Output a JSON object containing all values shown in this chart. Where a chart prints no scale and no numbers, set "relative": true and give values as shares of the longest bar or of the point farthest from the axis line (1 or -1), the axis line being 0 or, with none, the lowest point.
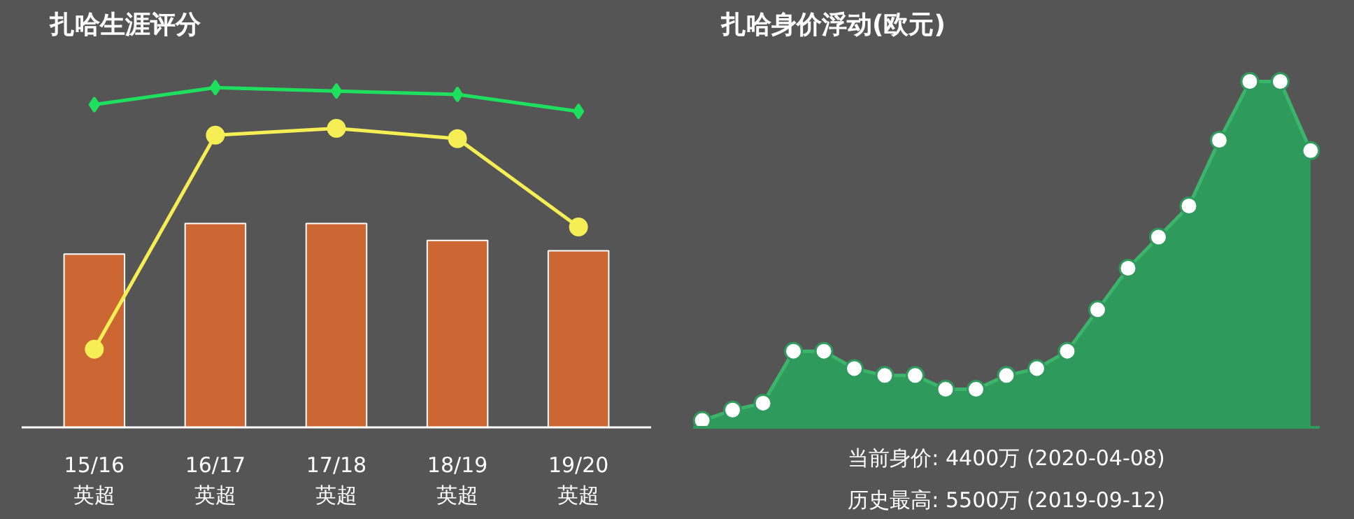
{
  "chart_data": [
    {
      "type": "bar",
      "title": "扎哈生涯评分",
      "relative": true,
      "categories": [
        "15/16\n英超",
        "16/17\n英超",
        "17/18\n英超",
        "18/19\n英超",
        "19/20\n英超"
      ],
      "series": [
        {
          "type": "bar",
          "color": "#cc6633",
          "values": [
            0.51,
            0.6,
            0.6,
            0.55,
            0.52
          ]
        },
        {
          "type": "line",
          "color": "#f5ef55",
          "marker": "circle",
          "values": [
            0.23,
            0.86,
            0.88,
            0.85,
            0.59
          ]
        },
        {
          "type": "line",
          "color": "#1ee05e",
          "marker": "diamond",
          "values": [
            0.95,
            1.0,
            0.99,
            0.98,
            0.93
          ]
        }
      ],
      "grid": false
    },
    {
      "type": "area",
      "title": "扎哈身价浮动(欧元)",
      "relative": true,
      "tick_labels": false,
      "marker": "circle",
      "categories": [
        null,
        null,
        null,
        null,
        null,
        null,
        null,
        null,
        null,
        null,
        null,
        null,
        null,
        null,
        null,
        null,
        null,
        null,
        null,
        null,
        null
      ],
      "series": [
        {
          "color": "#2e9a5c",
          "values": [
            0.02,
            0.05,
            0.07,
            0.22,
            0.22,
            0.17,
            0.15,
            0.15,
            0.11,
            0.11,
            0.15,
            0.17,
            0.22,
            0.34,
            0.46,
            0.55,
            0.64,
            0.83,
            1.0,
            1.0,
            0.8
          ]
        }
      ],
      "annotations": [
        "当前身价: 4400万 (2020-04-08)",
        "历史最高: 5500万 (2019-09-12)"
      ],
      "grid": false
    }
  ]
}
